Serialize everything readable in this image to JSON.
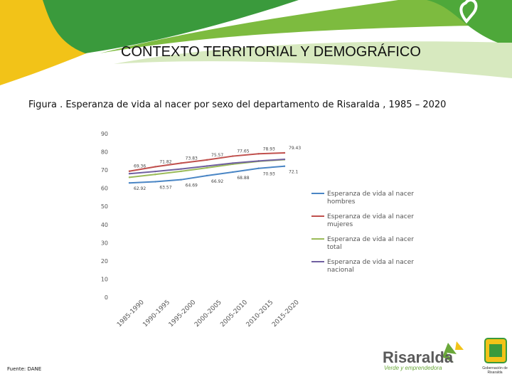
{
  "slide_title": "CONTEXTO TERRITORIAL Y DEMOGRÁFICO",
  "caption": "Figura . Esperanza de vida al nacer por sexo del departamento de Risaralda , 1985 – 2020",
  "source": "Fuente: DANE",
  "logo": {
    "brand": "Risaralda",
    "tagline": "Verde y emprendedora",
    "gov_text": "Gobernación de Risaralda"
  },
  "colors": {
    "hombres": "#4a86c5",
    "mujeres": "#c0504d",
    "total": "#9bbb59",
    "nacional": "#7060a0",
    "banner_yellow": "#f2c318",
    "banner_green": "#5aa632"
  },
  "chart_data": {
    "type": "line",
    "title": "",
    "xlabel": "",
    "ylabel": "",
    "ylim": [
      0,
      90
    ],
    "yticks": [
      "0",
      "10",
      "20",
      "30",
      "40",
      "50",
      "60",
      "70",
      "80",
      "90"
    ],
    "categories": [
      "1985-1990",
      "1990-1995",
      "1995-2000",
      "2000-2005",
      "2005-2010",
      "2010-2015",
      "2015-2020"
    ],
    "series": [
      {
        "name": "Esperanza de vida al nacer hombres",
        "values": [
          62.92,
          63.57,
          64.69,
          66.92,
          68.88,
          70.93,
          72.1
        ],
        "labels": [
          "62.92",
          "63.57",
          "64.69",
          "66.92",
          "68.88",
          "70.93",
          "72.1"
        ]
      },
      {
        "name": "Esperanza de vida al nacer mujeres",
        "values": [
          69.36,
          71.82,
          73.83,
          75.57,
          77.65,
          78.93,
          79.43
        ],
        "labels": [
          "69.36",
          "71.82",
          "73.83",
          "75.57",
          "77.65",
          "78.93",
          "79.43"
        ]
      },
      {
        "name": "Esperanza de vida al nacer total",
        "values": [
          66.0,
          67.6,
          69.3,
          71.2,
          73.2,
          74.8,
          75.7
        ],
        "labels": []
      },
      {
        "name": "Esperanza de vida al nacer nacional",
        "values": [
          68.0,
          69.2,
          70.6,
          72.2,
          73.8,
          75.0,
          75.9
        ],
        "labels": []
      }
    ]
  }
}
